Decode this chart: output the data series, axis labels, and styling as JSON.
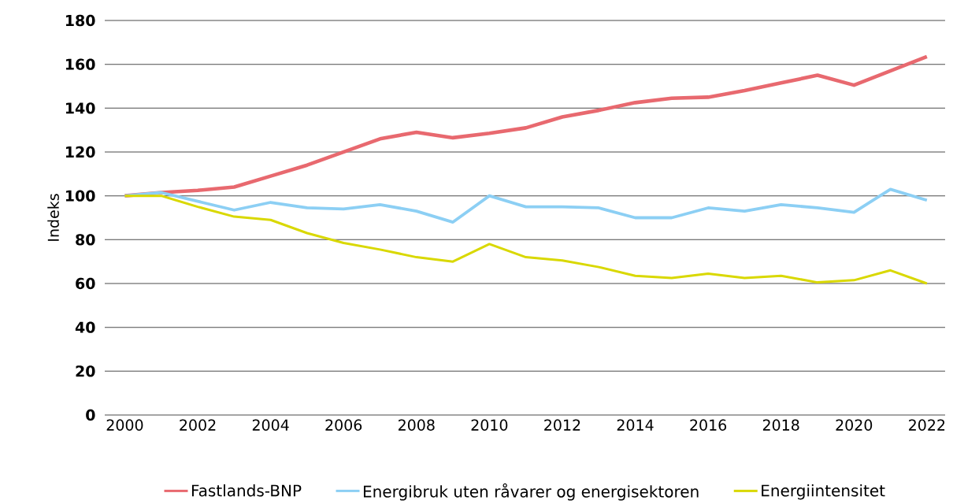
{
  "chart_data": {
    "type": "line",
    "ylabel": "Indeks",
    "x": [
      2000,
      2001,
      2002,
      2003,
      2004,
      2005,
      2006,
      2007,
      2008,
      2009,
      2010,
      2011,
      2012,
      2013,
      2014,
      2015,
      2016,
      2017,
      2018,
      2019,
      2020,
      2021,
      2022
    ],
    "series": [
      {
        "name": "Fastlands-BNP",
        "color": "#e8696f",
        "values": [
          100,
          101.5,
          102.5,
          104,
          109,
          114,
          120,
          126,
          129,
          126.5,
          128.5,
          131,
          136,
          139,
          142.5,
          144.5,
          145,
          148,
          151.5,
          155,
          150.5,
          157,
          163.5
        ]
      },
      {
        "name": "Energibruk uten råvarer og energisektoren",
        "color": "#8ccff4",
        "values": [
          100,
          101.5,
          97.5,
          93.5,
          97,
          94.5,
          94,
          96,
          93,
          88,
          100,
          95,
          95,
          94.5,
          90,
          90,
          94.5,
          93,
          96,
          94.5,
          92.5,
          103,
          98
        ]
      },
      {
        "name": "Energiintensitet",
        "color": "#d9d800",
        "values": [
          100,
          100,
          95,
          90.5,
          89,
          83,
          78.5,
          75.5,
          72,
          70,
          78,
          72,
          70.5,
          67.5,
          63.5,
          62.5,
          64.5,
          62.5,
          63.5,
          60.5,
          61.5,
          66,
          60
        ]
      }
    ],
    "xlim": [
      1999.45,
      2022.5
    ],
    "ylim": [
      0,
      180
    ],
    "xticks": [
      2000,
      2002,
      2004,
      2006,
      2008,
      2010,
      2012,
      2014,
      2016,
      2018,
      2020,
      2022
    ],
    "yticks": [
      0,
      20,
      40,
      60,
      80,
      100,
      120,
      140,
      160,
      180
    ],
    "grid": "y",
    "legend": "bottom",
    "marker": "none",
    "line_style": "solid"
  }
}
